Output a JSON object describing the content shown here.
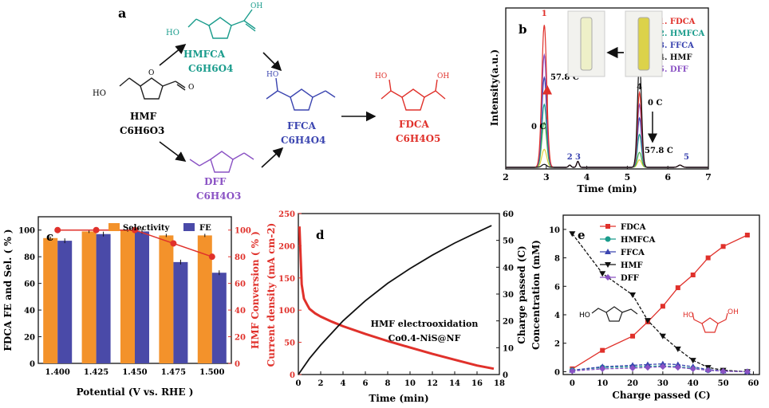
{
  "colors": {
    "red": "#e0312b",
    "teal": "#1a9c8c",
    "blue": "#3b45b0",
    "black": "#111111",
    "purple": "#8a52c4",
    "orange": "#f3922b",
    "navy": "#4a4aa8",
    "yellow": "#e3d23a",
    "green": "#4caf50"
  },
  "panel_a": {
    "label": "a",
    "hmf": {
      "name": "HMF",
      "formula": "C6H6O3",
      "ho": "HO"
    },
    "hmfca": {
      "name": "HMFCA",
      "formula": "C6H6O4",
      "ho": "HO",
      "oh": "OH"
    },
    "dff": {
      "name": "DFF",
      "formula": "C6H4O3"
    },
    "ffca": {
      "name": "FFCA",
      "formula": "C6H4O4",
      "ho": "HO"
    },
    "fdca": {
      "name": "FDCA",
      "formula": "C6H4O5",
      "ho": "HO",
      "oh": "OH"
    }
  },
  "chart_data": [
    {
      "type": "line",
      "panel": "b",
      "xlabel": "Time (min)",
      "ylabel": "Intensity(a.u.)",
      "xlim": [
        2,
        7
      ],
      "xticks": [
        "2",
        "3",
        "4",
        "5",
        "6",
        "7"
      ],
      "legend": [
        "1. FDCA",
        "2. HMFCA",
        "3. FFCA",
        "4. HMF",
        "5. DFF"
      ],
      "peaks": [
        {
          "label": "1",
          "time": 2.95
        },
        {
          "label": "2",
          "time": 3.58
        },
        {
          "label": "3",
          "time": 3.78
        },
        {
          "label": "4",
          "time": 5.3
        },
        {
          "label": "5",
          "time": 6.3
        }
      ],
      "traces": [
        {
          "color": "#e3d23a",
          "fdca": 0.12,
          "hmf": 0.05
        },
        {
          "color": "#4caf50",
          "fdca": 0.3,
          "hmf": 0.1
        },
        {
          "color": "#1a9c8c",
          "fdca": 0.42,
          "hmf": 0.22
        },
        {
          "color": "#3b45b0",
          "fdca": 0.6,
          "hmf": 0.33
        },
        {
          "color": "#8a52c4",
          "fdca": 0.75,
          "hmf": 0.42
        },
        {
          "color": "#e0312b",
          "fdca": 0.95,
          "hmf": 0.5
        },
        {
          "color": "#111111",
          "fdca": 0.02,
          "hmf": 0.7
        }
      ],
      "annotations": {
        "left_top": "57.8 C",
        "left_bottom": "0 C",
        "right_top": "0 C",
        "right_bottom": "57.8 C"
      }
    },
    {
      "type": "bar",
      "panel": "c",
      "categories": [
        "1.400",
        "1.425",
        "1.450",
        "1.475",
        "1.500"
      ],
      "series": [
        {
          "name": "Selectivity",
          "values": [
            94,
            99,
            100,
            96,
            96
          ]
        },
        {
          "name": "FE",
          "values": [
            92,
            97,
            99,
            76,
            68
          ]
        }
      ],
      "conversion": {
        "name": "HMF Conversion",
        "values": [
          100,
          100,
          100,
          90,
          80
        ]
      },
      "xlabel": "Potential (V vs. RHE )",
      "ylabel": "FDCA FE and Sel. ( % )",
      "y2label": "HMF Conversion ( % )",
      "ylim": [
        0,
        110
      ],
      "yticks": [
        "0",
        "20",
        "40",
        "60",
        "80",
        "100"
      ]
    },
    {
      "type": "line",
      "panel": "d",
      "xlabel": "Time (min)",
      "ylabel": "Current density (mA cm-2)",
      "y2label": "Charge passed (C)",
      "xlim": [
        0,
        18
      ],
      "ylim": [
        0,
        250
      ],
      "y2lim": [
        0,
        60
      ],
      "xticks": [
        "0",
        "2",
        "4",
        "6",
        "8",
        "10",
        "12",
        "14",
        "16",
        "18"
      ],
      "yticks": [
        "0",
        "50",
        "100",
        "150",
        "200",
        "250"
      ],
      "y2ticks": [
        "0",
        "10",
        "20",
        "30",
        "40",
        "50",
        "60"
      ],
      "current": {
        "x": [
          0.1,
          0.3,
          0.5,
          0.8,
          1.0,
          1.5,
          2,
          3,
          4,
          6,
          8,
          10,
          12,
          14,
          16,
          17.5
        ],
        "y": [
          230,
          140,
          118,
          108,
          102,
          95,
          90,
          82,
          75,
          63,
          52,
          42,
          32,
          23,
          14,
          9
        ]
      },
      "charge": {
        "x": [
          0,
          1,
          2,
          4,
          6,
          8,
          10,
          12,
          14,
          16,
          17.3
        ],
        "y": [
          0,
          6,
          11,
          20,
          27.5,
          34,
          39.5,
          44.5,
          49,
          53,
          55.5
        ]
      },
      "annotation": [
        "HMF electrooxidation",
        "Co0.4-NiS@NF"
      ]
    },
    {
      "type": "line",
      "panel": "e",
      "xlabel": "Charge passed (C)",
      "ylabel": "Concentration (mM)",
      "xlim": [
        -3,
        62
      ],
      "ylim": [
        -0.2,
        11
      ],
      "xticks": [
        "0",
        "10",
        "20",
        "30",
        "40",
        "50",
        "60"
      ],
      "yticks": [
        "0",
        "2",
        "4",
        "6",
        "8",
        "10"
      ],
      "x": [
        0,
        10,
        20,
        25,
        30,
        35,
        40,
        45,
        50,
        58
      ],
      "series": [
        {
          "name": "FDCA",
          "values": [
            0.2,
            1.5,
            2.5,
            3.5,
            4.6,
            5.9,
            6.8,
            8.0,
            8.8,
            9.6
          ]
        },
        {
          "name": "HMFCA",
          "values": [
            0.1,
            0.3,
            0.35,
            0.38,
            0.4,
            0.35,
            0.25,
            0.1,
            0.05,
            0.0
          ]
        },
        {
          "name": "FFCA",
          "values": [
            0.1,
            0.35,
            0.45,
            0.5,
            0.55,
            0.5,
            0.35,
            0.15,
            0.05,
            0.0
          ]
        },
        {
          "name": "HMF",
          "values": [
            9.7,
            6.9,
            5.4,
            3.6,
            2.5,
            1.6,
            0.8,
            0.3,
            0.1,
            0.0
          ]
        },
        {
          "name": "DFF",
          "values": [
            0.05,
            0.2,
            0.25,
            0.3,
            0.35,
            0.3,
            0.2,
            0.1,
            0.03,
            0.0
          ]
        }
      ]
    }
  ],
  "labels": {
    "b": "b",
    "c": "c",
    "d": "d",
    "e": "e"
  }
}
